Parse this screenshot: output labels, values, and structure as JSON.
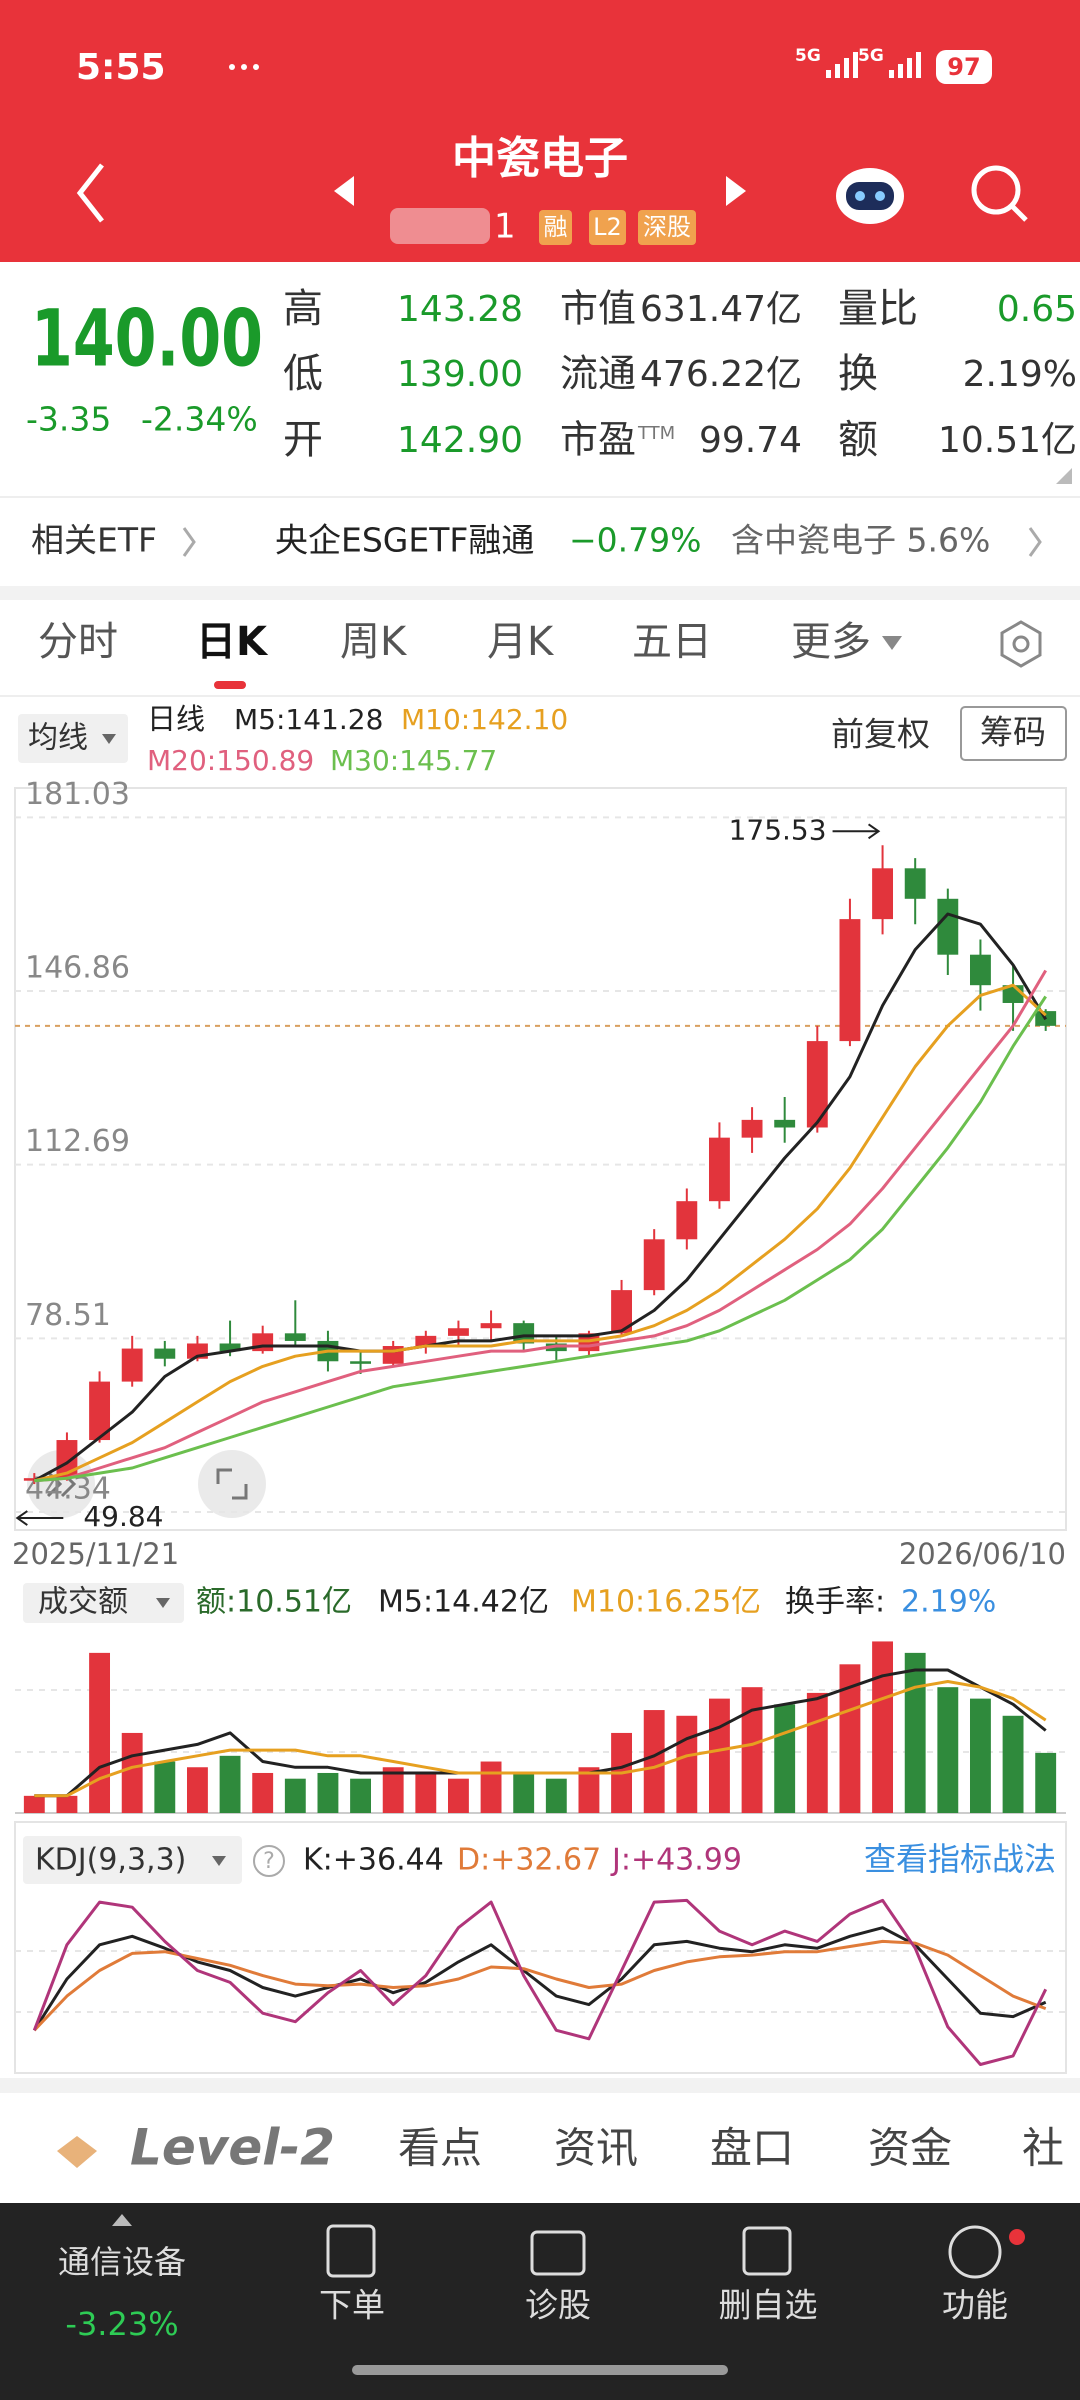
{
  "status_bar": {
    "time": "5:55",
    "signal_1": "5G",
    "signal_2": "5G",
    "battery": "97"
  },
  "header": {
    "title": "中瓷电子",
    "code": "1",
    "badges": [
      "融",
      "L2",
      "深股"
    ]
  },
  "quote": {
    "price": "140.00",
    "change": "-3.35",
    "change_pct": "-2.34%",
    "col1": [
      {
        "label": "高",
        "value": "143.28"
      },
      {
        "label": "低",
        "value": "139.00"
      },
      {
        "label": "开",
        "value": "142.90"
      }
    ],
    "col2": [
      {
        "label": "市值",
        "value": "631.47亿"
      },
      {
        "label": "流通",
        "value": "476.22亿"
      },
      {
        "label": "市盈",
        "sup": "TTM",
        "value": "99.74"
      }
    ],
    "col3": [
      {
        "label": "量比",
        "value": "0.65"
      },
      {
        "label": "换",
        "value": "2.19%"
      },
      {
        "label": "额",
        "value": "10.51亿"
      }
    ]
  },
  "etf": {
    "label": "相关ETF",
    "fund": "央企ESGETF融通",
    "fund_change": "−0.79%",
    "holding": "含中瓷电子 5.6%"
  },
  "tabs": {
    "items": [
      "分时",
      "日K",
      "周K",
      "月K",
      "五日",
      "更多"
    ]
  },
  "chart_data": [
    {
      "type": "candlestick",
      "selector": "均线",
      "period": "日线",
      "adjust": "前复权",
      "chip_button": "筹码",
      "ylim": [
        40.8,
        186.8
      ],
      "yticks": [
        181.03,
        146.86,
        112.69,
        78.51,
        44.34
      ],
      "x_labels": [
        "2025/11/21",
        "2026/06/10"
      ],
      "max_label": "175.53",
      "min_label": "49.84",
      "up_color": "#e2343c",
      "down_color": "#2f8a3c",
      "candles": [
        {
          "o": 50.5,
          "h": 52,
          "l": 49.84,
          "c": 51
        },
        {
          "o": 51,
          "h": 60,
          "l": 50.5,
          "c": 58.5
        },
        {
          "o": 58.5,
          "h": 72,
          "l": 58,
          "c": 70
        },
        {
          "o": 70,
          "h": 79,
          "l": 69,
          "c": 76.5
        },
        {
          "o": 76.5,
          "h": 78,
          "l": 73,
          "c": 74.5
        },
        {
          "o": 74.5,
          "h": 79,
          "l": 74,
          "c": 77.5
        },
        {
          "o": 77.5,
          "h": 82,
          "l": 75,
          "c": 76
        },
        {
          "o": 76,
          "h": 81,
          "l": 75.5,
          "c": 79.5
        },
        {
          "o": 79.5,
          "h": 86,
          "l": 77,
          "c": 78
        },
        {
          "o": 78,
          "h": 80,
          "l": 72,
          "c": 74
        },
        {
          "o": 74,
          "h": 76,
          "l": 71.5,
          "c": 73.5
        },
        {
          "o": 73.5,
          "h": 78,
          "l": 73,
          "c": 77
        },
        {
          "o": 77,
          "h": 80,
          "l": 75.5,
          "c": 79
        },
        {
          "o": 79,
          "h": 82,
          "l": 77,
          "c": 80.5
        },
        {
          "o": 80.5,
          "h": 84,
          "l": 78,
          "c": 81.5
        },
        {
          "o": 81.5,
          "h": 82,
          "l": 76,
          "c": 77.5
        },
        {
          "o": 77.5,
          "h": 79,
          "l": 74,
          "c": 76
        },
        {
          "o": 76,
          "h": 80,
          "l": 75,
          "c": 79.5
        },
        {
          "o": 79.5,
          "h": 90,
          "l": 79,
          "c": 88
        },
        {
          "o": 88,
          "h": 100,
          "l": 87,
          "c": 98
        },
        {
          "o": 98,
          "h": 108,
          "l": 96,
          "c": 105.5
        },
        {
          "o": 105.5,
          "h": 121,
          "l": 104,
          "c": 118
        },
        {
          "o": 118,
          "h": 124,
          "l": 115,
          "c": 121.5
        },
        {
          "o": 121.5,
          "h": 126,
          "l": 117,
          "c": 120
        },
        {
          "o": 120,
          "h": 140,
          "l": 119,
          "c": 137
        },
        {
          "o": 137,
          "h": 165,
          "l": 136,
          "c": 161
        },
        {
          "o": 161,
          "h": 175.53,
          "l": 158,
          "c": 171
        },
        {
          "o": 171,
          "h": 173,
          "l": 160,
          "c": 165
        },
        {
          "o": 165,
          "h": 167,
          "l": 150,
          "c": 154
        },
        {
          "o": 154,
          "h": 157,
          "l": 143,
          "c": 148
        },
        {
          "o": 148,
          "h": 152,
          "l": 139,
          "c": 144.5
        },
        {
          "o": 142.9,
          "h": 143.28,
          "l": 139,
          "c": 140
        }
      ],
      "series": [
        {
          "name": "M5:141.28",
          "color": "#222222",
          "values": [
            50.5,
            54,
            59,
            64,
            71,
            75,
            76,
            77,
            77,
            77,
            76,
            76,
            77,
            78,
            78,
            79,
            79,
            79,
            80,
            84,
            90,
            98,
            106,
            114,
            121,
            130,
            144,
            155,
            162,
            160,
            152,
            141.28
          ]
        },
        {
          "name": "M10:142.10",
          "color": "#e6a020",
          "values": [
            50.5,
            52,
            55,
            58,
            62,
            66,
            70,
            73,
            75,
            76,
            76,
            76,
            77,
            77,
            77,
            78,
            78,
            78,
            79,
            81,
            84,
            88,
            93,
            98,
            104,
            112,
            122,
            132,
            140,
            146,
            148,
            142.1
          ]
        },
        {
          "name": "M20:150.89",
          "color": "#e0607e",
          "values": [
            50.5,
            51,
            53,
            55,
            57,
            60,
            63,
            66,
            68,
            70,
            72,
            73,
            74,
            75,
            76,
            76,
            77,
            77,
            78,
            79,
            81,
            84,
            88,
            92,
            96,
            101,
            108,
            116,
            124,
            132,
            140,
            150.89
          ]
        },
        {
          "name": "M30:145.77",
          "color": "#6bbf4e",
          "values": [
            50.5,
            51,
            52,
            53,
            55,
            57,
            59,
            61,
            63,
            65,
            67,
            69,
            70,
            71,
            72,
            73,
            74,
            75,
            76,
            77,
            78,
            80,
            83,
            86,
            90,
            94,
            100,
            108,
            116,
            125,
            136,
            145.77
          ]
        }
      ]
    },
    {
      "type": "bar",
      "selector": "成交额",
      "latest_label": "额:10.51亿",
      "turnover_label": "换手率:",
      "turnover_value": "2.19%",
      "ylim": [
        0,
        32
      ],
      "values": [
        3,
        3,
        28,
        14,
        9,
        8,
        10,
        7,
        6,
        7,
        6,
        8,
        7,
        6,
        9,
        7,
        6,
        8,
        14,
        18,
        17,
        20,
        22,
        19,
        21,
        26,
        30,
        28,
        22,
        20,
        17,
        10.51
      ],
      "series": [
        {
          "name": "M5:14.42亿",
          "color": "#222222",
          "values": [
            3,
            3,
            8,
            10,
            11,
            12,
            14,
            9,
            8,
            8,
            7,
            7,
            7,
            7,
            7,
            7,
            7,
            7,
            8,
            10,
            13,
            15,
            18,
            19,
            20,
            22,
            24,
            25,
            25,
            22,
            19,
            14.42
          ]
        },
        {
          "name": "M10:16.25亿",
          "color": "#e6a020",
          "values": [
            3,
            3,
            6,
            8,
            9,
            10,
            11,
            11,
            11,
            10,
            10,
            9,
            8,
            7,
            7,
            7,
            7,
            7,
            7,
            8,
            10,
            11,
            12,
            14,
            16,
            18,
            20,
            22,
            23,
            22,
            20,
            16.25
          ]
        }
      ]
    },
    {
      "type": "line",
      "selector": "KDJ(9,3,3)",
      "help": "?",
      "link": "查看指标战法",
      "ylim": [
        -5,
        105
      ],
      "series": [
        {
          "name": "K:+36.44",
          "color": "#222222",
          "values": [
            20,
            50,
            70,
            75,
            68,
            60,
            55,
            45,
            40,
            45,
            50,
            42,
            48,
            60,
            70,
            55,
            40,
            35,
            50,
            70,
            72,
            68,
            66,
            70,
            68,
            75,
            80,
            70,
            50,
            30,
            28,
            36.44
          ]
        },
        {
          "name": "D:+32.67",
          "color": "#e07b39",
          "values": [
            20,
            40,
            55,
            65,
            66,
            62,
            58,
            52,
            47,
            46,
            47,
            45,
            46,
            50,
            57,
            56,
            50,
            45,
            47,
            55,
            60,
            63,
            64,
            66,
            66,
            69,
            72,
            71,
            64,
            52,
            40,
            32.67
          ]
        },
        {
          "name": "J:+43.99",
          "color": "#b0357a",
          "values": [
            20,
            70,
            95,
            92,
            72,
            55,
            48,
            30,
            25,
            42,
            55,
            35,
            52,
            80,
            95,
            52,
            20,
            15,
            55,
            95,
            96,
            78,
            70,
            78,
            72,
            88,
            96,
            68,
            22,
            0,
            5,
            43.99
          ]
        }
      ]
    }
  ],
  "level2": {
    "brand": "Level-2",
    "items": [
      "看点",
      "资讯",
      "盘口",
      "资金",
      "社"
    ]
  },
  "nav": {
    "sector": "通信设备",
    "sector_change": "-3.23%",
    "items": [
      "下单",
      "诊股",
      "删自选",
      "功能"
    ]
  }
}
